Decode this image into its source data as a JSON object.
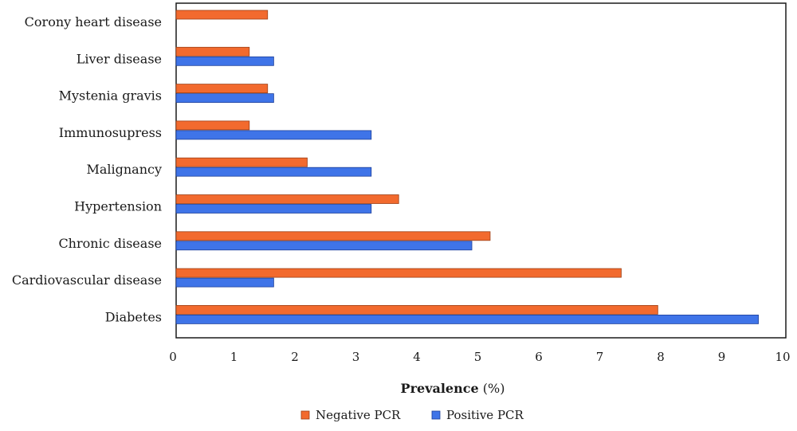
{
  "chart_data": {
    "type": "bar",
    "orientation": "horizontal",
    "categories": [
      "Corony heart disease",
      "Liver disease",
      "Mystenia gravis",
      "Immunosupress",
      "Malignancy",
      "Hypertension",
      "Chronic disease",
      "Cardiovascular disease",
      "Diabetes"
    ],
    "series": [
      {
        "name": "Negative PCR",
        "color": "#f26a2e",
        "values": [
          1.5,
          1.2,
          1.5,
          1.2,
          2.15,
          3.65,
          5.15,
          7.3,
          7.9
        ]
      },
      {
        "name": "Positive PCR",
        "color": "#3f74e8",
        "values": [
          null,
          1.6,
          1.6,
          3.2,
          3.2,
          3.2,
          4.85,
          1.6,
          9.55
        ]
      }
    ],
    "xlabel_bold": "Prevalence",
    "xlabel_rest": " (%)",
    "xlim": [
      0,
      10
    ],
    "xticks": [
      "0",
      "1",
      "2",
      "3",
      "4",
      "5",
      "6",
      "7",
      "8",
      "9",
      "10"
    ],
    "grid": false,
    "legend_placement": "bottom"
  }
}
